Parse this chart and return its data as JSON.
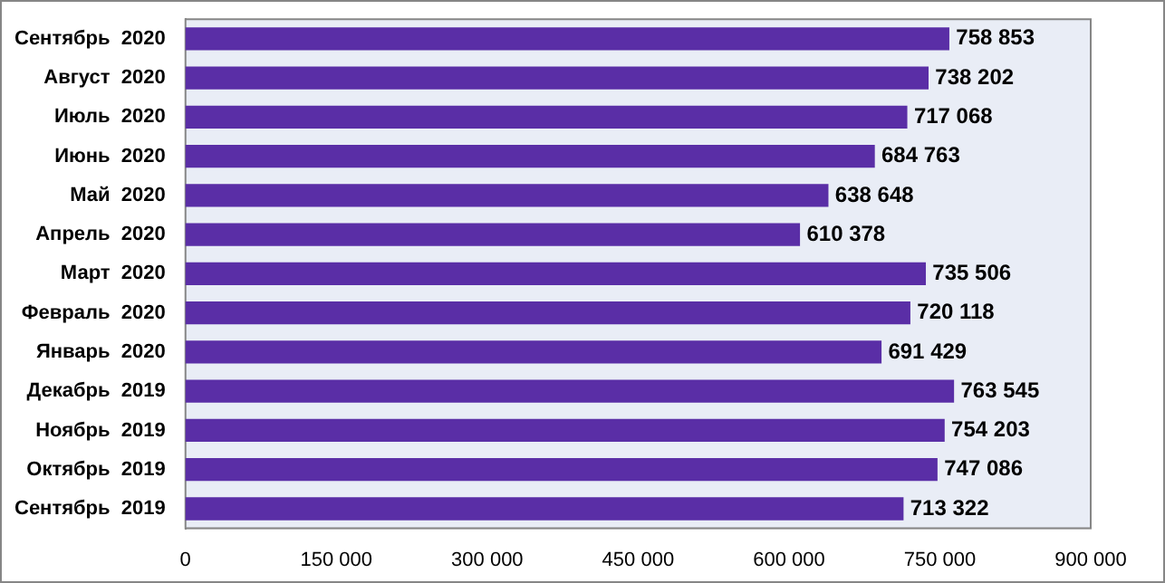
{
  "chart_data": {
    "type": "bar",
    "orientation": "horizontal",
    "categories": [
      "Сентябрь  2020",
      "Август  2020",
      "Июль  2020",
      "Июнь  2020",
      "Май  2020",
      "Апрель  2020",
      "Март  2020",
      "Февраль  2020",
      "Январь  2020",
      "Декабрь  2019",
      "Ноябрь  2019",
      "Октябрь  2019",
      "Сентябрь  2019"
    ],
    "values": [
      758853,
      738202,
      717068,
      684763,
      638648,
      610378,
      735506,
      720118,
      691429,
      763545,
      754203,
      747086,
      713322
    ],
    "value_labels": [
      "758 853",
      "738 202",
      "717 068",
      "684 763",
      "638 648",
      "610 378",
      "735 506",
      "720 118",
      "691 429",
      "763 545",
      "754 203",
      "747 086",
      "713 322"
    ],
    "color": "#5a2ea6",
    "xlim": [
      0,
      900000
    ],
    "xticks": [
      0,
      {
        "value": 150000,
        "label": "150 000"
      },
      {
        "value": 300000,
        "label": "300 000"
      },
      {
        "value": 450000,
        "label": "450 000"
      },
      {
        "value": 600000,
        "label": "600 000"
      },
      {
        "value": 750000,
        "label": "750 000"
      },
      {
        "value": 900000,
        "label": "900 000"
      }
    ],
    "grid": false,
    "legend": false
  }
}
